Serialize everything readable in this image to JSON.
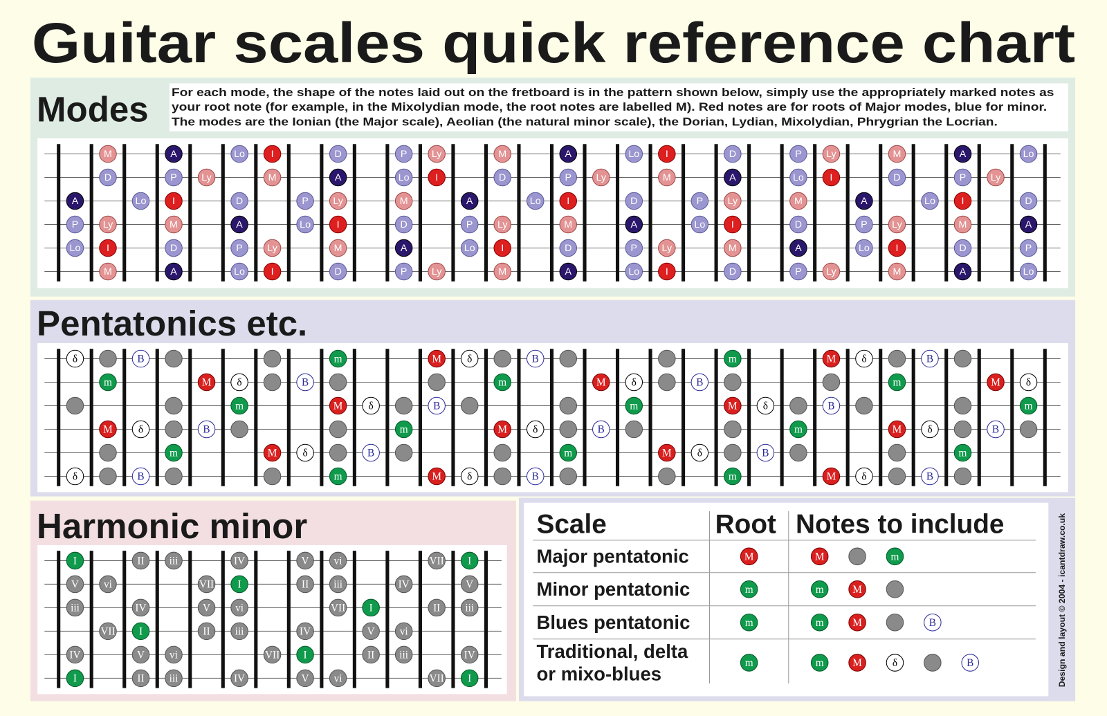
{
  "title": "Guitar scales quick reference chart",
  "modes": {
    "heading": "Modes",
    "description": [
      "For each mode, the shape of the notes laid out on the fretboard is in the pattern shown below, simply use the appropriately marked notes as",
      "your root note (for example,  in the Mixolydian mode, the root notes are labelled M). Red notes are for roots of Major modes, blue for minor.",
      "The modes are the Ionian (the Major scale), Aeolian (the natural minor scale), the Dorian, Lydian, Mixolydian, Phrygrian the Locrian."
    ],
    "strings": [
      [
        null,
        "M",
        null,
        "A",
        null,
        "Lo",
        "I",
        null,
        "D",
        null,
        "P",
        "Ly",
        null,
        "M",
        null,
        "A",
        null,
        "Lo",
        "I",
        null,
        "D",
        null,
        "P",
        "Ly",
        null,
        "M",
        null,
        "A",
        null,
        "Lo"
      ],
      [
        null,
        "D",
        null,
        "P",
        "Ly",
        null,
        "M",
        null,
        "A",
        null,
        "Lo",
        "I",
        null,
        "D",
        null,
        "P",
        "Ly",
        null,
        "M",
        null,
        "A",
        null,
        "Lo",
        "I",
        null,
        "D",
        null,
        "P",
        "Ly",
        null
      ],
      [
        "A",
        null,
        "Lo",
        "I",
        null,
        "D",
        null,
        "P",
        "Ly",
        null,
        "M",
        null,
        "A",
        null,
        "Lo",
        "I",
        null,
        "D",
        null,
        "P",
        "Ly",
        null,
        "M",
        null,
        "A",
        null,
        "Lo",
        "I",
        null,
        "D"
      ],
      [
        "P",
        "Ly",
        null,
        "M",
        null,
        "A",
        null,
        "Lo",
        "I",
        null,
        "D",
        null,
        "P",
        "Ly",
        null,
        "M",
        null,
        "A",
        null,
        "Lo",
        "I",
        null,
        "D",
        null,
        "P",
        "Ly",
        null,
        "M",
        null,
        "A"
      ],
      [
        "Lo",
        "I",
        null,
        "D",
        null,
        "P",
        "Ly",
        null,
        "M",
        null,
        "A",
        null,
        "Lo",
        "I",
        null,
        "D",
        null,
        "P",
        "Ly",
        null,
        "M",
        null,
        "A",
        null,
        "Lo",
        "I",
        null,
        "D",
        null,
        "P"
      ],
      [
        null,
        "M",
        null,
        "A",
        null,
        "Lo",
        "I",
        null,
        "D",
        null,
        "P",
        "Ly",
        null,
        "M",
        null,
        "A",
        null,
        "Lo",
        "I",
        null,
        "D",
        null,
        "P",
        "Ly",
        null,
        "M",
        null,
        "A",
        null,
        "Lo"
      ]
    ],
    "note_colors": {
      "M": {
        "fill": "#e39393",
        "stroke": "#a04848",
        "text": "#ffffff"
      },
      "Ly": {
        "fill": "#e39393",
        "stroke": "#a04848",
        "text": "#ffffff"
      },
      "I": {
        "fill": "#dd1f1f",
        "stroke": "#880000",
        "text": "#ffffff"
      },
      "A": {
        "fill": "#2a176c",
        "stroke": "#000000",
        "text": "#ffffff"
      },
      "D": {
        "fill": "#9b96cf",
        "stroke": "#5a5a99",
        "text": "#ffffff"
      },
      "P": {
        "fill": "#9b96cf",
        "stroke": "#5a5a99",
        "text": "#ffffff"
      },
      "Lo": {
        "fill": "#9b96cf",
        "stroke": "#5a5a99",
        "text": "#ffffff"
      }
    }
  },
  "pentatonics": {
    "heading": "Pentatonics etc.",
    "strings": [
      [
        "δ",
        true,
        "B",
        true,
        null,
        null,
        true,
        null,
        "m",
        null,
        null,
        "M",
        "δ",
        true,
        "B",
        true,
        null,
        null,
        true,
        null,
        "m",
        null,
        null,
        "M",
        "δ",
        true,
        "B",
        true,
        null,
        null
      ],
      [
        null,
        "m",
        null,
        null,
        "M",
        "δ",
        true,
        "B",
        true,
        null,
        null,
        true,
        null,
        "m",
        null,
        null,
        "M",
        "δ",
        true,
        "B",
        true,
        null,
        null,
        true,
        null,
        "m",
        null,
        null,
        "M",
        "δ"
      ],
      [
        true,
        null,
        null,
        true,
        null,
        "m",
        null,
        null,
        "M",
        "δ",
        true,
        "B",
        true,
        null,
        null,
        true,
        null,
        "m",
        null,
        null,
        "M",
        "δ",
        true,
        "B",
        true,
        null,
        null,
        true,
        null,
        "m"
      ],
      [
        null,
        "M",
        "δ",
        true,
        "B",
        true,
        null,
        null,
        true,
        null,
        "m",
        null,
        null,
        "M",
        "δ",
        true,
        "B",
        true,
        null,
        null,
        true,
        null,
        "m",
        null,
        null,
        "M",
        "δ",
        true,
        "B",
        true
      ],
      [
        null,
        true,
        null,
        "m",
        null,
        null,
        "M",
        "δ",
        true,
        "B",
        true,
        null,
        null,
        true,
        null,
        "m",
        null,
        null,
        "M",
        "δ",
        true,
        "B",
        true,
        null,
        null,
        true,
        null,
        "m",
        null,
        null
      ],
      [
        "δ",
        true,
        "B",
        true,
        null,
        null,
        true,
        null,
        "m",
        null,
        null,
        "M",
        "δ",
        true,
        "B",
        true,
        null,
        null,
        true,
        null,
        "m",
        null,
        null,
        "M",
        "δ",
        true,
        "B",
        true,
        null,
        null
      ]
    ],
    "note_colors": {
      "M": {
        "fill": "#d9201f",
        "stroke": "#7a0000",
        "text": "#ffffff"
      },
      "m": {
        "fill": "#0f9a4c",
        "stroke": "#055a2a",
        "text": "#ffffff"
      },
      "δ": {
        "fill": "#ffffff",
        "stroke": "#000000",
        "text": "#000000"
      },
      "B": {
        "fill": "#ffffff",
        "stroke": "#2a2a9a",
        "text": "#2a2a9a"
      },
      "unlabeled": {
        "fill": "#8a8a8a",
        "stroke": "#555555",
        "text": "#ffffff"
      }
    }
  },
  "harmonic_minor": {
    "heading": "Harmonic minor",
    "strings": [
      [
        "I",
        null,
        "II",
        "iii",
        null,
        "IV",
        null,
        "V",
        "vi",
        null,
        null,
        "VII",
        "I"
      ],
      [
        "V",
        "vi",
        null,
        null,
        "VII",
        "I",
        null,
        "II",
        "iii",
        null,
        "IV",
        null,
        "V"
      ],
      [
        "iii",
        null,
        "IV",
        null,
        "V",
        "vi",
        null,
        null,
        "VII",
        "I",
        null,
        "II",
        "iii"
      ],
      [
        null,
        "VII",
        "I",
        null,
        "II",
        "iii",
        null,
        "IV",
        null,
        "V",
        "vi",
        null,
        null
      ],
      [
        "IV",
        null,
        "V",
        "vi",
        null,
        null,
        "VII",
        "I",
        null,
        "II",
        "iii",
        null,
        "IV"
      ],
      [
        "I",
        null,
        "II",
        "iii",
        null,
        "IV",
        null,
        "V",
        "vi",
        null,
        null,
        "VII",
        "I"
      ]
    ],
    "note_colors": {
      "I": {
        "fill": "#0f9a4c",
        "stroke": "#055a2a",
        "text": "#ffffff"
      },
      "default": {
        "fill": "#8a8a8a",
        "stroke": "#555555",
        "text": "#ffffff"
      }
    }
  },
  "scale_table": {
    "header": [
      "Scale",
      "Root",
      "Notes to include"
    ],
    "rows": [
      {
        "scale": [
          "Major pentatonic"
        ],
        "root": "M",
        "notes": [
          "M",
          true,
          "m"
        ]
      },
      {
        "scale": [
          "Minor pentatonic"
        ],
        "root": "m",
        "notes": [
          "m",
          "M",
          true
        ]
      },
      {
        "scale": [
          "Blues pentatonic"
        ],
        "root": "m",
        "notes": [
          "m",
          "M",
          true,
          "B"
        ]
      },
      {
        "scale": [
          "Traditional, delta",
          "or mixo-blues"
        ],
        "root": "m",
        "notes": [
          "m",
          "M",
          "δ",
          true,
          "B"
        ]
      }
    ]
  },
  "credit": "Design and layout © 2004 - icantdraw.co.uk"
}
